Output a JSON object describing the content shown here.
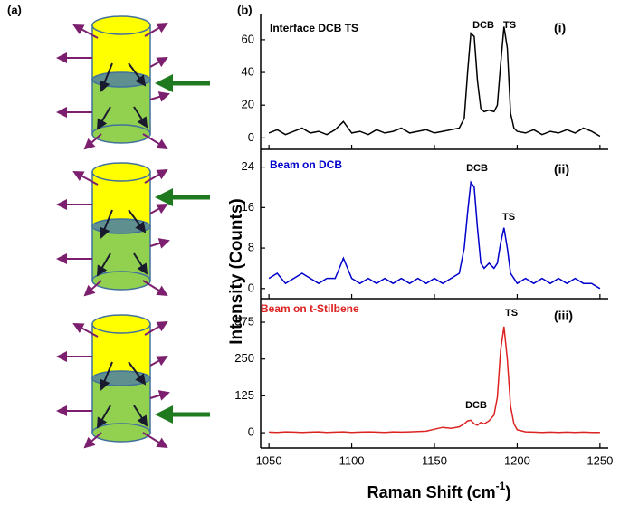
{
  "figure": {
    "panel_a": "(a)",
    "panel_b": "(b)",
    "ylabel": "Intensity (Counts)",
    "xlabel": [
      "Raman Shift (cm",
      "-1",
      ")"
    ]
  },
  "chart_data": [
    {
      "type": "line",
      "title": "Interface DCB TS",
      "label": "(i)",
      "annotations": [
        "DCB",
        "TS"
      ],
      "color": "#000000",
      "x": [
        1050,
        1055,
        1060,
        1065,
        1070,
        1075,
        1080,
        1085,
        1090,
        1095,
        1100,
        1105,
        1110,
        1115,
        1120,
        1125,
        1130,
        1135,
        1140,
        1145,
        1150,
        1155,
        1160,
        1165,
        1168,
        1170,
        1172,
        1174,
        1176,
        1178,
        1180,
        1183,
        1186,
        1188,
        1190,
        1192,
        1194,
        1196,
        1198,
        1200,
        1205,
        1210,
        1215,
        1220,
        1225,
        1230,
        1235,
        1240,
        1245,
        1250
      ],
      "values": [
        3,
        5,
        2,
        4,
        6,
        3,
        4,
        2,
        5,
        10,
        3,
        4,
        2,
        5,
        3,
        4,
        6,
        3,
        4,
        5,
        3,
        4,
        5,
        6,
        12,
        40,
        64,
        62,
        35,
        18,
        16,
        17,
        16,
        20,
        45,
        68,
        55,
        15,
        6,
        4,
        3,
        5,
        2,
        4,
        3,
        5,
        3,
        6,
        4,
        1
      ],
      "xlim": [
        1045,
        1255
      ],
      "xticks": [
        1050,
        1100,
        1150,
        1200,
        1250
      ],
      "ylim": [
        -7,
        76
      ],
      "yticks": [
        0,
        20,
        40,
        60
      ]
    },
    {
      "type": "line",
      "title": "Beam on DCB",
      "label": "(ii)",
      "annotations": [
        "DCB",
        "TS"
      ],
      "color": "#0000cc",
      "x": [
        1050,
        1055,
        1060,
        1065,
        1070,
        1075,
        1080,
        1085,
        1090,
        1095,
        1100,
        1105,
        1110,
        1115,
        1120,
        1125,
        1130,
        1135,
        1140,
        1145,
        1150,
        1155,
        1160,
        1165,
        1168,
        1170,
        1172,
        1174,
        1176,
        1178,
        1180,
        1183,
        1186,
        1188,
        1190,
        1192,
        1194,
        1196,
        1198,
        1200,
        1205,
        1210,
        1215,
        1220,
        1225,
        1230,
        1235,
        1240,
        1245,
        1250
      ],
      "values": [
        2,
        3,
        1,
        2,
        3,
        2,
        1,
        2,
        2,
        6,
        2,
        1,
        2,
        1,
        2,
        1,
        2,
        1,
        2,
        1,
        2,
        1,
        2,
        3,
        8,
        15,
        21,
        20,
        12,
        5,
        4,
        5,
        4,
        5,
        9,
        12,
        8,
        3,
        2,
        1,
        2,
        1,
        2,
        1,
        2,
        1,
        2,
        1,
        1,
        0
      ],
      "xlim": [
        1045,
        1255
      ],
      "xticks": [
        1050,
        1100,
        1150,
        1200,
        1250
      ],
      "ylim": [
        -2,
        27.5
      ],
      "yticks": [
        0,
        8,
        16,
        24
      ]
    },
    {
      "type": "line",
      "title": "Beam on t-Stilbene",
      "label": "(iii)",
      "annotations": [
        "DCB",
        "TS"
      ],
      "color": "#dd2222",
      "x": [
        1050,
        1055,
        1060,
        1065,
        1070,
        1075,
        1080,
        1085,
        1090,
        1095,
        1100,
        1105,
        1110,
        1115,
        1120,
        1125,
        1130,
        1135,
        1140,
        1145,
        1150,
        1155,
        1160,
        1165,
        1168,
        1170,
        1172,
        1174,
        1176,
        1178,
        1180,
        1183,
        1186,
        1188,
        1190,
        1192,
        1194,
        1196,
        1198,
        1200,
        1205,
        1210,
        1215,
        1220,
        1225,
        1230,
        1235,
        1240,
        1245,
        1250
      ],
      "values": [
        2,
        1,
        3,
        2,
        1,
        2,
        3,
        1,
        2,
        3,
        1,
        2,
        3,
        2,
        1,
        3,
        2,
        3,
        4,
        5,
        12,
        18,
        15,
        20,
        30,
        40,
        42,
        30,
        25,
        35,
        30,
        40,
        60,
        120,
        280,
        360,
        250,
        90,
        30,
        10,
        3,
        2,
        1,
        2,
        1,
        2,
        1,
        2,
        1,
        1
      ],
      "xlim": [
        1045,
        1255
      ],
      "xticks": [
        1050,
        1100,
        1150,
        1200,
        1250
      ],
      "ylim": [
        -52,
        455
      ],
      "yticks": [
        0,
        125,
        250,
        375
      ]
    }
  ]
}
